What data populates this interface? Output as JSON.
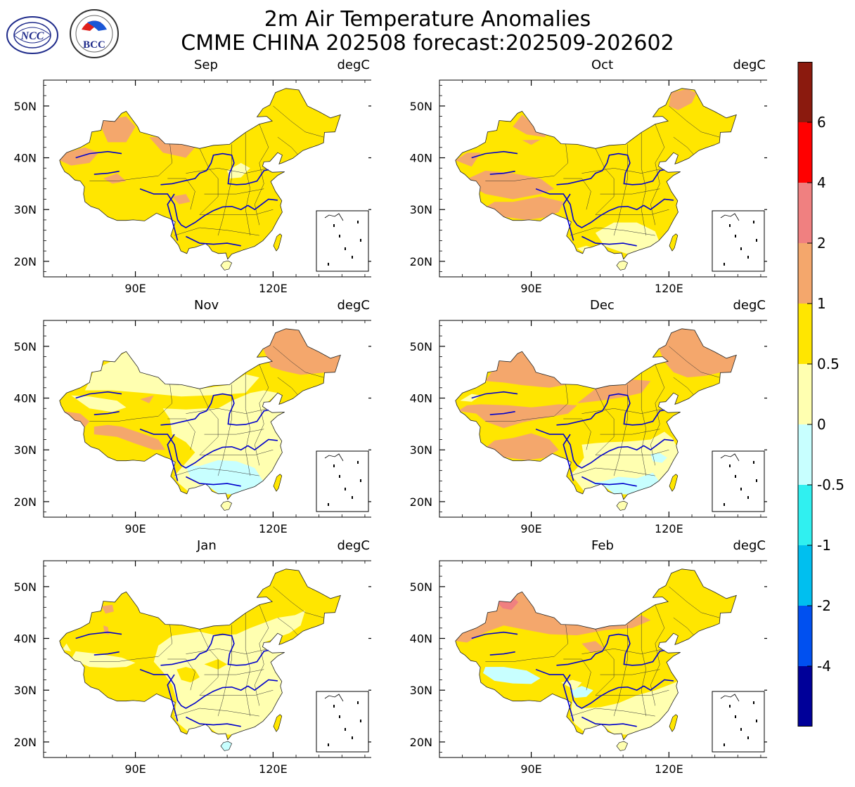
{
  "title": {
    "line1": "2m Air Temperature Anomalies",
    "line2": "CMME CHINA 202508 forecast:202509-202602"
  },
  "logos": {
    "left": "NCC",
    "right": "BCC"
  },
  "unit": "degC",
  "axes": {
    "lat_ticks": [
      "50N",
      "40N",
      "30N",
      "20N"
    ],
    "lon_ticks": [
      "90E",
      "120E"
    ]
  },
  "panels": [
    {
      "month": "Sep"
    },
    {
      "month": "Oct"
    },
    {
      "month": "Nov"
    },
    {
      "month": "Dec"
    },
    {
      "month": "Jan"
    },
    {
      "month": "Feb"
    }
  ],
  "colorbar": {
    "labels": [
      "6",
      "4",
      "2",
      "1",
      "0.5",
      "0",
      "-0.5",
      "-1",
      "-2",
      "-4"
    ],
    "colors": [
      "#8B1A0E",
      "#FF0000",
      "#F08080",
      "#F4A76C",
      "#FFE600",
      "#FFFFB0",
      "#C8FFFF",
      "#30F0F0",
      "#00BFEF",
      "#0050F0",
      "#000099"
    ]
  },
  "legend_colors": {
    "river": "#0000CC",
    "border": "#000000"
  }
}
